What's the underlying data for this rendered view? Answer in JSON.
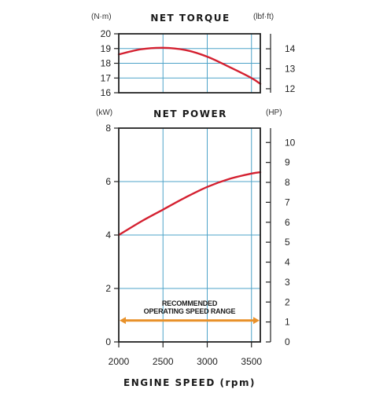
{
  "chart_data": [
    {
      "type": "line",
      "title": "NET TORQUE",
      "ylabel": "(N·m)",
      "y2label": "(lbf·ft)",
      "xlim": [
        2000,
        3600
      ],
      "ylim": [
        16,
        20
      ],
      "y2lim": [
        11.8,
        14.75
      ],
      "x_ticks": [
        "2000",
        "2500",
        "3000",
        "3500"
      ],
      "y_ticks": [
        "20",
        "19",
        "18",
        "17",
        "16"
      ],
      "y2_ticks": [
        "14",
        "13",
        "12"
      ],
      "grid": true,
      "series": [
        {
          "x": [
            2000,
            2250,
            2500,
            2750,
            3000,
            3250,
            3500,
            3600
          ],
          "y": [
            18.6,
            18.95,
            19.05,
            18.9,
            18.45,
            17.75,
            17.0,
            16.6
          ]
        }
      ]
    },
    {
      "type": "line",
      "title": "NET POWER",
      "ylabel": "(kW)",
      "y2label": "(HP)",
      "xlim": [
        2000,
        3600
      ],
      "ylim": [
        0,
        8
      ],
      "y2lim": [
        0,
        10.72
      ],
      "x_ticks": [
        "2000",
        "2500",
        "3000",
        "3500"
      ],
      "y_ticks": [
        "8",
        "6",
        "4",
        "2",
        "0"
      ],
      "y2_ticks": [
        "10",
        "9",
        "8",
        "7",
        "6",
        "5",
        "4",
        "3",
        "2",
        "1",
        "0"
      ],
      "grid": true,
      "series": [
        {
          "x": [
            2000,
            2250,
            2500,
            2750,
            3000,
            3250,
            3500,
            3600
          ],
          "y": [
            4.0,
            4.5,
            4.95,
            5.4,
            5.8,
            6.1,
            6.3,
            6.35
          ]
        }
      ],
      "annotation": {
        "text": [
          "RECOMMENDED",
          "OPERATING SPEED RANGE"
        ],
        "range": [
          2000,
          3600
        ],
        "y": 0.8
      }
    }
  ],
  "xlabel": "ENGINE SPEED (rpm)",
  "colors": {
    "line": "#d42030",
    "range": "#e8912a",
    "grid": "#4da3c8",
    "frame": "#222222"
  }
}
